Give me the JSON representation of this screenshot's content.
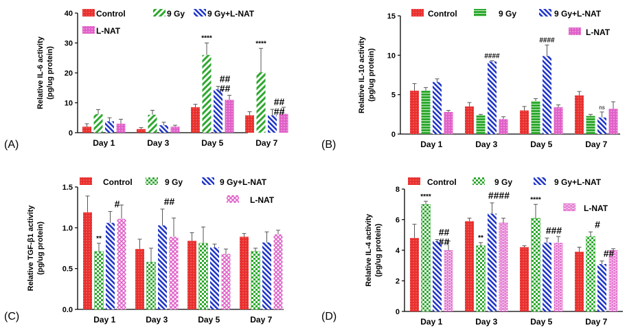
{
  "colors": {
    "control": "#e8302e",
    "gy9": "#2ea82e",
    "nat": "#1e34c8",
    "lnat": "#e060c8"
  },
  "chart_data": [
    {
      "panel": "(A)",
      "type": "bar",
      "ylabel_line1": "Relative IL-6 activity",
      "ylabel_line2": "(pg/ug protein)",
      "ylim": [
        0,
        40
      ],
      "yticks": [
        0,
        10,
        20,
        30,
        40
      ],
      "ytick_labels": [
        "0",
        "10",
        "20",
        "30",
        "40"
      ],
      "categories": [
        "Day 1",
        "Day 3",
        "Day 5",
        "Day 7"
      ],
      "series": [
        {
          "name": "Control",
          "values": [
            2,
            1.2,
            8.5,
            5.8
          ],
          "errors": [
            1,
            0.5,
            1,
            1.2
          ]
        },
        {
          "name": "9 Gy",
          "values": [
            6.2,
            6,
            26,
            20.2
          ],
          "errors": [
            1.5,
            1.5,
            4,
            8
          ]
        },
        {
          "name": "9 Gy+L-NAT",
          "values": [
            3.8,
            2.5,
            14.5,
            5.8
          ],
          "errors": [
            1.2,
            1,
            1,
            2
          ]
        },
        {
          "name": "L-NAT",
          "values": [
            3,
            2,
            11,
            6.3
          ],
          "errors": [
            1.5,
            0.5,
            1.5,
            2.2
          ]
        }
      ],
      "annotations": [
        {
          "text": "****",
          "category": 2,
          "series": 1,
          "style": "ann"
        },
        {
          "text": "##",
          "category": 2,
          "series": 2,
          "style": "ann-big"
        },
        {
          "text": "##",
          "category": 2,
          "series": 2,
          "style": "ann-big",
          "line": 2
        },
        {
          "text": "****",
          "category": 3,
          "series": 1,
          "style": "ann"
        },
        {
          "text": "##",
          "category": 3,
          "series": 2,
          "style": "ann-big"
        },
        {
          "text": "##",
          "category": 3,
          "series": 2,
          "style": "ann-big",
          "line": 2
        }
      ]
    },
    {
      "panel": "(B)",
      "type": "bar",
      "ylabel_line1": "Relative IL-10 activity",
      "ylabel_line2": "(pg/ug protein)",
      "ylim": [
        0,
        15
      ],
      "yticks": [
        0,
        5,
        10,
        15
      ],
      "ytick_labels": [
        "0",
        "5",
        "10",
        "15"
      ],
      "categories": [
        "Day 1",
        "Day 3",
        "Day 5",
        "Day 7"
      ],
      "series": [
        {
          "name": "Control",
          "values": [
            5.5,
            3.5,
            3,
            4.9
          ],
          "errors": [
            0.9,
            0.5,
            0.5,
            0.5
          ]
        },
        {
          "name": "9 Gy",
          "values": [
            5.5,
            2.4,
            4.2,
            2.3
          ],
          "errors": [
            0.4,
            0.1,
            0.3,
            0.2
          ]
        },
        {
          "name": "9 Gy+L-NAT",
          "values": [
            6.6,
            9.2,
            9.9,
            2.1
          ],
          "errors": [
            0.4,
            0.1,
            1.4,
            0.7
          ]
        },
        {
          "name": "L-NAT",
          "values": [
            2.8,
            1.9,
            3.4,
            3.2
          ],
          "errors": [
            0.2,
            0.3,
            0.3,
            0.9
          ]
        }
      ],
      "annotations": [
        {
          "text": "####",
          "category": 1,
          "series": 2,
          "style": "ann"
        },
        {
          "text": "####",
          "category": 2,
          "series": 2,
          "style": "ann"
        },
        {
          "text": "ns",
          "category": 3,
          "series": 2,
          "style": "ann-small"
        }
      ]
    },
    {
      "panel": "(C)",
      "type": "bar",
      "ylabel_line1": "Relative TGF-β1 activity",
      "ylabel_line2": "(pg/ug protein)",
      "ylim": [
        0,
        1.5
      ],
      "yticks": [
        0,
        0.5,
        1,
        1.5
      ],
      "ytick_labels": [
        "0.0",
        "0.5",
        "1.0",
        "1.5"
      ],
      "categories": [
        "Day 1",
        "Day 3",
        "Day 5",
        "Day 7"
      ],
      "series": [
        {
          "name": "Control",
          "values": [
            1.19,
            0.74,
            0.84,
            0.89
          ],
          "errors": [
            0.2,
            0.12,
            0.1,
            0.04
          ]
        },
        {
          "name": "9 Gy",
          "values": [
            0.71,
            0.58,
            0.81,
            0.71
          ],
          "errors": [
            0.1,
            0.17,
            0.2,
            0.04
          ]
        },
        {
          "name": "9 Gy+L-NAT",
          "values": [
            1.06,
            1.03,
            0.76,
            0.82
          ],
          "errors": [
            0.14,
            0.2,
            0.04,
            0.13
          ]
        },
        {
          "name": "L-NAT",
          "values": [
            1.11,
            0.89,
            0.68,
            0.92
          ],
          "errors": [
            0.17,
            0.23,
            0.06,
            0.05
          ]
        }
      ],
      "annotations": [
        {
          "text": "**",
          "category": 0,
          "series": 1,
          "style": "ann"
        },
        {
          "text": "#",
          "category": 0,
          "series": 2,
          "style": "ann-big"
        },
        {
          "text": "##",
          "category": 1,
          "series": 2,
          "style": "ann-big"
        }
      ]
    },
    {
      "panel": "(D)",
      "type": "bar",
      "ylabel_line1": "Relative IL-4 activity",
      "ylabel_line2": "(pg/ug protein)",
      "ylim": [
        0,
        8
      ],
      "yticks": [
        0,
        2,
        4,
        6,
        8
      ],
      "ytick_labels": [
        "0",
        "2",
        "4",
        "6",
        "8"
      ],
      "categories": [
        "Day 1",
        "Day 3",
        "Day 5",
        "Day 7"
      ],
      "series": [
        {
          "name": "Control",
          "values": [
            4.8,
            5.9,
            4.2,
            3.9
          ],
          "errors": [
            0.9,
            0.2,
            0.1,
            0.3
          ]
        },
        {
          "name": "9 Gy",
          "values": [
            7,
            4.3,
            6.1,
            4.9
          ],
          "errors": [
            0.2,
            0.2,
            0.9,
            0.3
          ]
        },
        {
          "name": "9 Gy+L-NAT",
          "values": [
            4.6,
            6.4,
            4.5,
            3.1
          ],
          "errors": [
            0.1,
            0.7,
            0.3,
            0.2
          ]
        },
        {
          "name": "L-NAT",
          "values": [
            4,
            5.8,
            4.5,
            4
          ],
          "errors": [
            0.6,
            0.3,
            0.4,
            0.1
          ]
        }
      ],
      "annotations": [
        {
          "text": "****",
          "category": 0,
          "series": 1,
          "style": "ann"
        },
        {
          "text": "##",
          "category": 0,
          "series": 2,
          "style": "ann-big"
        },
        {
          "text": "##",
          "category": 0,
          "series": 2,
          "style": "ann-big",
          "line": 2
        },
        {
          "text": "**",
          "category": 1,
          "series": 1,
          "style": "ann"
        },
        {
          "text": "####",
          "category": 1,
          "series": 2,
          "style": "ann-big"
        },
        {
          "text": "****",
          "category": 2,
          "series": 1,
          "style": "ann"
        },
        {
          "text": "###",
          "category": 2,
          "series": 2,
          "style": "ann-big"
        },
        {
          "text": "#",
          "category": 3,
          "series": 1,
          "style": "ann-big"
        },
        {
          "text": "##",
          "category": 3,
          "series": 2,
          "style": "ann-big"
        }
      ]
    }
  ]
}
